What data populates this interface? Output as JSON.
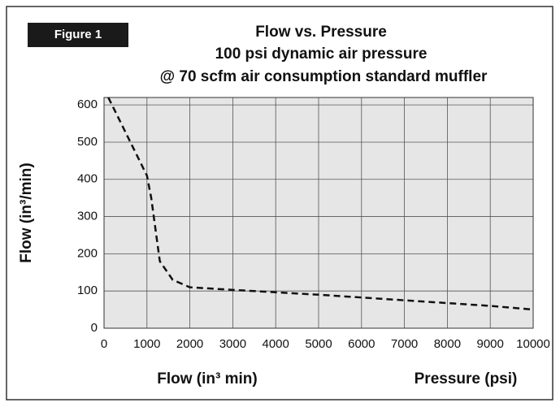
{
  "chart_data": {
    "type": "line",
    "figure_label": "Figure 1",
    "title": [
      "Flow vs. Pressure",
      "100 psi dynamic air pressure",
      "@ 70 scfm air consumption standard muffler"
    ],
    "ylabel": "Flow (in³/min)",
    "xlabel": "Flow  (in³ min)",
    "xlabel2": "Pressure (psi)",
    "x": [
      100,
      1000,
      1100,
      1300,
      1600,
      2000,
      3000,
      5000,
      7000,
      9000,
      10000
    ],
    "series": [
      {
        "name": "Flow",
        "color": "#111111",
        "values": [
          620,
          410,
          350,
          180,
          130,
          110,
          103,
          90,
          75,
          60,
          50
        ]
      }
    ],
    "xlim": [
      0,
      10000
    ],
    "xticks": [
      0,
      1000,
      2000,
      3000,
      4000,
      5000,
      6000,
      7000,
      8000,
      9000,
      10000
    ],
    "ylim": [
      0,
      620
    ],
    "yticks": [
      0,
      100,
      200,
      300,
      400,
      500,
      600
    ],
    "grid": true
  }
}
